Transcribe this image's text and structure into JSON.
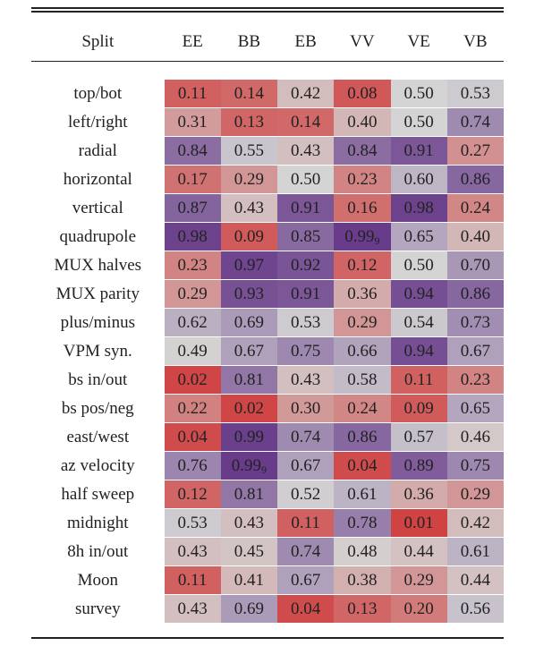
{
  "table": {
    "header": [
      "Split",
      "EE",
      "BB",
      "EB",
      "VV",
      "VE",
      "VB"
    ],
    "rows": [
      [
        "top/bot",
        "0.11",
        "0.14",
        "0.42",
        "0.08",
        "0.50",
        "0.53"
      ],
      [
        "left/right",
        "0.31",
        "0.13",
        "0.14",
        "0.40",
        "0.50",
        "0.74"
      ],
      [
        "radial",
        "0.84",
        "0.55",
        "0.43",
        "0.84",
        "0.91",
        "0.27"
      ],
      [
        "horizontal",
        "0.17",
        "0.29",
        "0.50",
        "0.23",
        "0.60",
        "0.86"
      ],
      [
        "vertical",
        "0.87",
        "0.43",
        "0.91",
        "0.16",
        "0.98",
        "0.24"
      ],
      [
        "quadrupole",
        "0.98",
        "0.09",
        "0.85",
        {
          "value": "0.99",
          "sub": "9"
        },
        "0.65",
        "0.40"
      ],
      [
        "MUX halves",
        "0.23",
        "0.97",
        "0.92",
        "0.12",
        "0.50",
        "0.70"
      ],
      [
        "MUX parity",
        "0.29",
        "0.93",
        "0.91",
        "0.36",
        "0.94",
        "0.86"
      ],
      [
        "plus/minus",
        "0.62",
        "0.69",
        "0.53",
        "0.29",
        "0.54",
        "0.73"
      ],
      [
        "VPM syn.",
        "0.49",
        "0.67",
        "0.75",
        "0.66",
        "0.94",
        "0.67"
      ],
      [
        "bs in/out",
        "0.02",
        "0.81",
        "0.43",
        "0.58",
        "0.11",
        "0.23"
      ],
      [
        "bs pos/neg",
        "0.22",
        "0.02",
        "0.30",
        "0.24",
        "0.09",
        "0.65"
      ],
      [
        "east/west",
        "0.04",
        "0.99",
        "0.74",
        "0.86",
        "0.57",
        "0.46"
      ],
      [
        "az velocity",
        "0.76",
        {
          "value": "0.99",
          "sub": "9"
        },
        "0.67",
        "0.04",
        "0.89",
        "0.75"
      ],
      [
        "half sweep",
        "0.12",
        "0.81",
        "0.52",
        "0.61",
        "0.36",
        "0.29"
      ],
      [
        "midnight",
        "0.53",
        "0.43",
        "0.11",
        "0.78",
        "0.01",
        "0.42"
      ],
      [
        "8h in/out",
        "0.43",
        "0.45",
        "0.74",
        "0.48",
        "0.44",
        "0.61"
      ],
      [
        "Moon",
        "0.11",
        "0.41",
        "0.67",
        "0.38",
        "0.29",
        "0.44"
      ],
      [
        "survey",
        "0.43",
        "0.69",
        "0.04",
        "0.13",
        "0.20",
        "0.56"
      ]
    ]
  }
}
